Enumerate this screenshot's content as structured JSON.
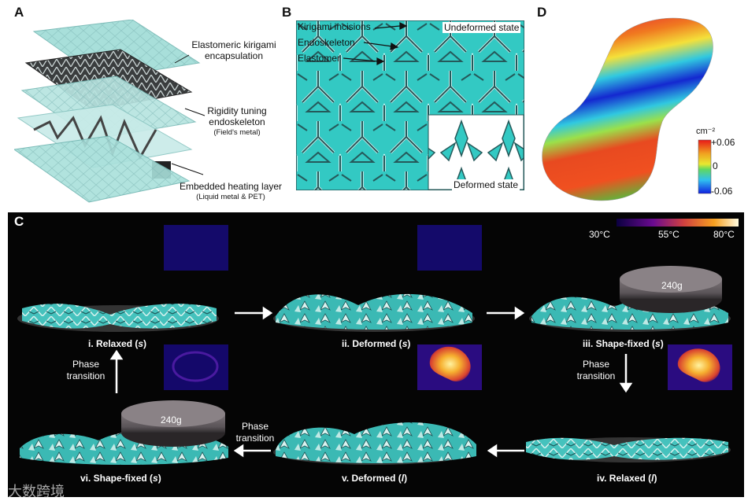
{
  "panels": {
    "a": {
      "letter": "A",
      "labels": {
        "encapsulation": "Elastomeric kirigami encapsulation",
        "endoskeleton": "Rigidity tuning endoskeleton",
        "endoskeleton_sub": "(Field's metal)",
        "heating": "Embedded heating layer",
        "heating_sub": "(Liquid metal & PET)"
      }
    },
    "b": {
      "letter": "B",
      "labels": {
        "incisions": "Kirigami incisions",
        "endoskeleton": "Endoskeleton",
        "elastomer": "Elastomer",
        "undeformed": "Undeformed state",
        "deformed": "Deformed state"
      }
    },
    "c": {
      "letter": "C",
      "temp_scale": {
        "min": "30°C",
        "mid": "55°C",
        "max": "80°C"
      },
      "weight": "240g",
      "steps": [
        {
          "label": "i. Relaxed (",
          "phase": "s",
          "close": ")"
        },
        {
          "label": "ii. Deformed (",
          "phase": "s",
          "close": ")"
        },
        {
          "label": "iii. Shape-fixed (",
          "phase": "s",
          "close": ")"
        },
        {
          "label": "iv. Relaxed (",
          "phase": "l",
          "close": ")"
        },
        {
          "label": "v. Deformed (",
          "phase": "l",
          "close": ")"
        },
        {
          "label": "vi. Shape-fixed (",
          "phase": "s",
          "close": ")"
        }
      ],
      "transition": "Phase transition"
    },
    "d": {
      "letter": "D",
      "colorbar": {
        "unit": "cm⁻²",
        "max": "+0.06",
        "mid": "0",
        "min": "-0.06"
      }
    }
  },
  "watermark": "大数跨境",
  "colors": {
    "teal": "#3cc6c1",
    "dark": "#2e3c3f",
    "bg_dark": "#050505"
  }
}
